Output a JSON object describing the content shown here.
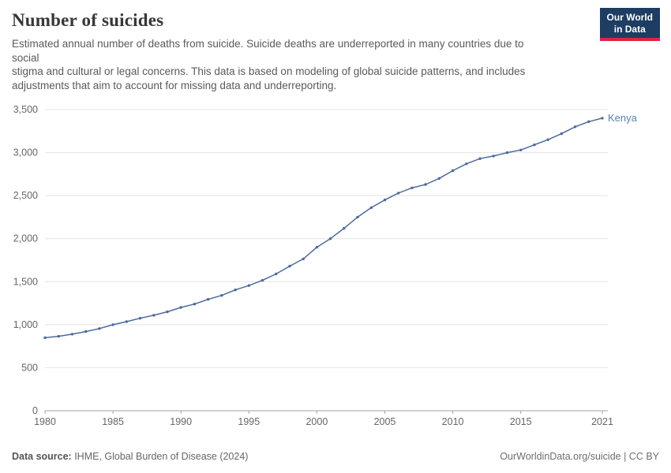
{
  "header": {
    "title": "Number of suicides",
    "subtitle": "Estimated annual number of deaths from suicide. Suicide deaths are underreported in many countries due to\nsocial\nstigma and cultural or legal concerns. This data is based on modeling of global suicide patterns, and includes\nadjustments that aim to account for missing data and underreporting.",
    "logo": {
      "line1": "Our World",
      "line2": "in Data"
    }
  },
  "chart_data": {
    "type": "line",
    "title": "Number of suicides",
    "entity": "Kenya",
    "xlabel": "",
    "ylabel": "",
    "xlim": [
      1980,
      2021
    ],
    "ylim": [
      0,
      3500
    ],
    "grid": true,
    "legend_position": "end-of-line-label",
    "x": [
      1980,
      1981,
      1982,
      1983,
      1984,
      1985,
      1986,
      1987,
      1988,
      1989,
      1990,
      1991,
      1992,
      1993,
      1994,
      1995,
      1996,
      1997,
      1998,
      1999,
      2000,
      2001,
      2002,
      2003,
      2004,
      2005,
      2006,
      2007,
      2008,
      2009,
      2010,
      2011,
      2012,
      2013,
      2014,
      2015,
      2016,
      2017,
      2018,
      2019,
      2020,
      2021
    ],
    "values": [
      848,
      865,
      890,
      920,
      955,
      1000,
      1035,
      1075,
      1110,
      1150,
      1200,
      1240,
      1295,
      1340,
      1405,
      1455,
      1515,
      1590,
      1680,
      1765,
      1900,
      2000,
      2120,
      2250,
      2360,
      2450,
      2530,
      2590,
      2630,
      2700,
      2790,
      2870,
      2930,
      2960,
      3000,
      3030,
      3090,
      3150,
      3220,
      3300,
      3360,
      3400
    ],
    "x_ticks": [
      1980,
      1985,
      1990,
      1995,
      2000,
      2005,
      2010,
      2015,
      2021
    ],
    "y_ticks": [
      0,
      500,
      1000,
      1500,
      2000,
      2500,
      3000,
      3500
    ],
    "y_tick_labels": [
      "0",
      "500",
      "1,000",
      "1,500",
      "2,000",
      "2,500",
      "3,000",
      "3,500"
    ],
    "colors": {
      "line": "#4c6a9c",
      "entity_label": "#5b7fae",
      "grid": "#e4e4e4",
      "axis": "#a3a3a3",
      "tick": "#666666"
    }
  },
  "footer": {
    "source_label": "Data source:",
    "source_text": " IHME, Global Burden of Disease (2024)",
    "right_text": "OurWorldinData.org/suicide | CC BY"
  }
}
